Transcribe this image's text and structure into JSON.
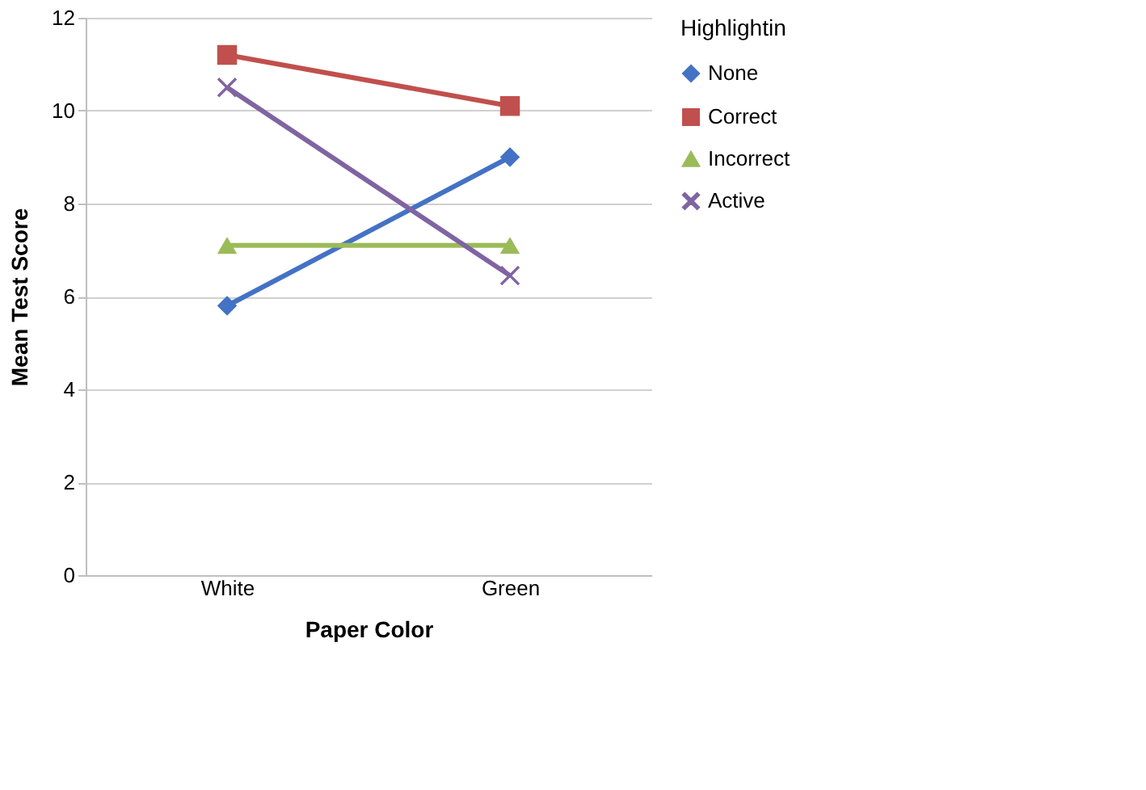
{
  "chart_data": {
    "type": "line",
    "xlabel": "Paper Color",
    "ylabel": "Mean Test Score",
    "legend_title": "Highlightin",
    "categories": [
      "White",
      "Green"
    ],
    "series": [
      {
        "name": "None",
        "color": "#4472c4",
        "marker": "diamond",
        "values": [
          5.8,
          9.0
        ]
      },
      {
        "name": "Correct",
        "color": "#c0504d",
        "marker": "square",
        "values": [
          11.2,
          10.1
        ]
      },
      {
        "name": "Incorrect",
        "color": "#9bbb59",
        "marker": "triangle",
        "values": [
          7.1,
          7.1
        ]
      },
      {
        "name": "Active",
        "color": "#8064a2",
        "marker": "cross",
        "values": [
          10.5,
          6.45
        ]
      }
    ],
    "ylim": [
      0,
      12
    ],
    "yticks": [
      0,
      2,
      4,
      6,
      8,
      10,
      12
    ],
    "grid": "y",
    "legend": "right",
    "line_style": "solid"
  }
}
